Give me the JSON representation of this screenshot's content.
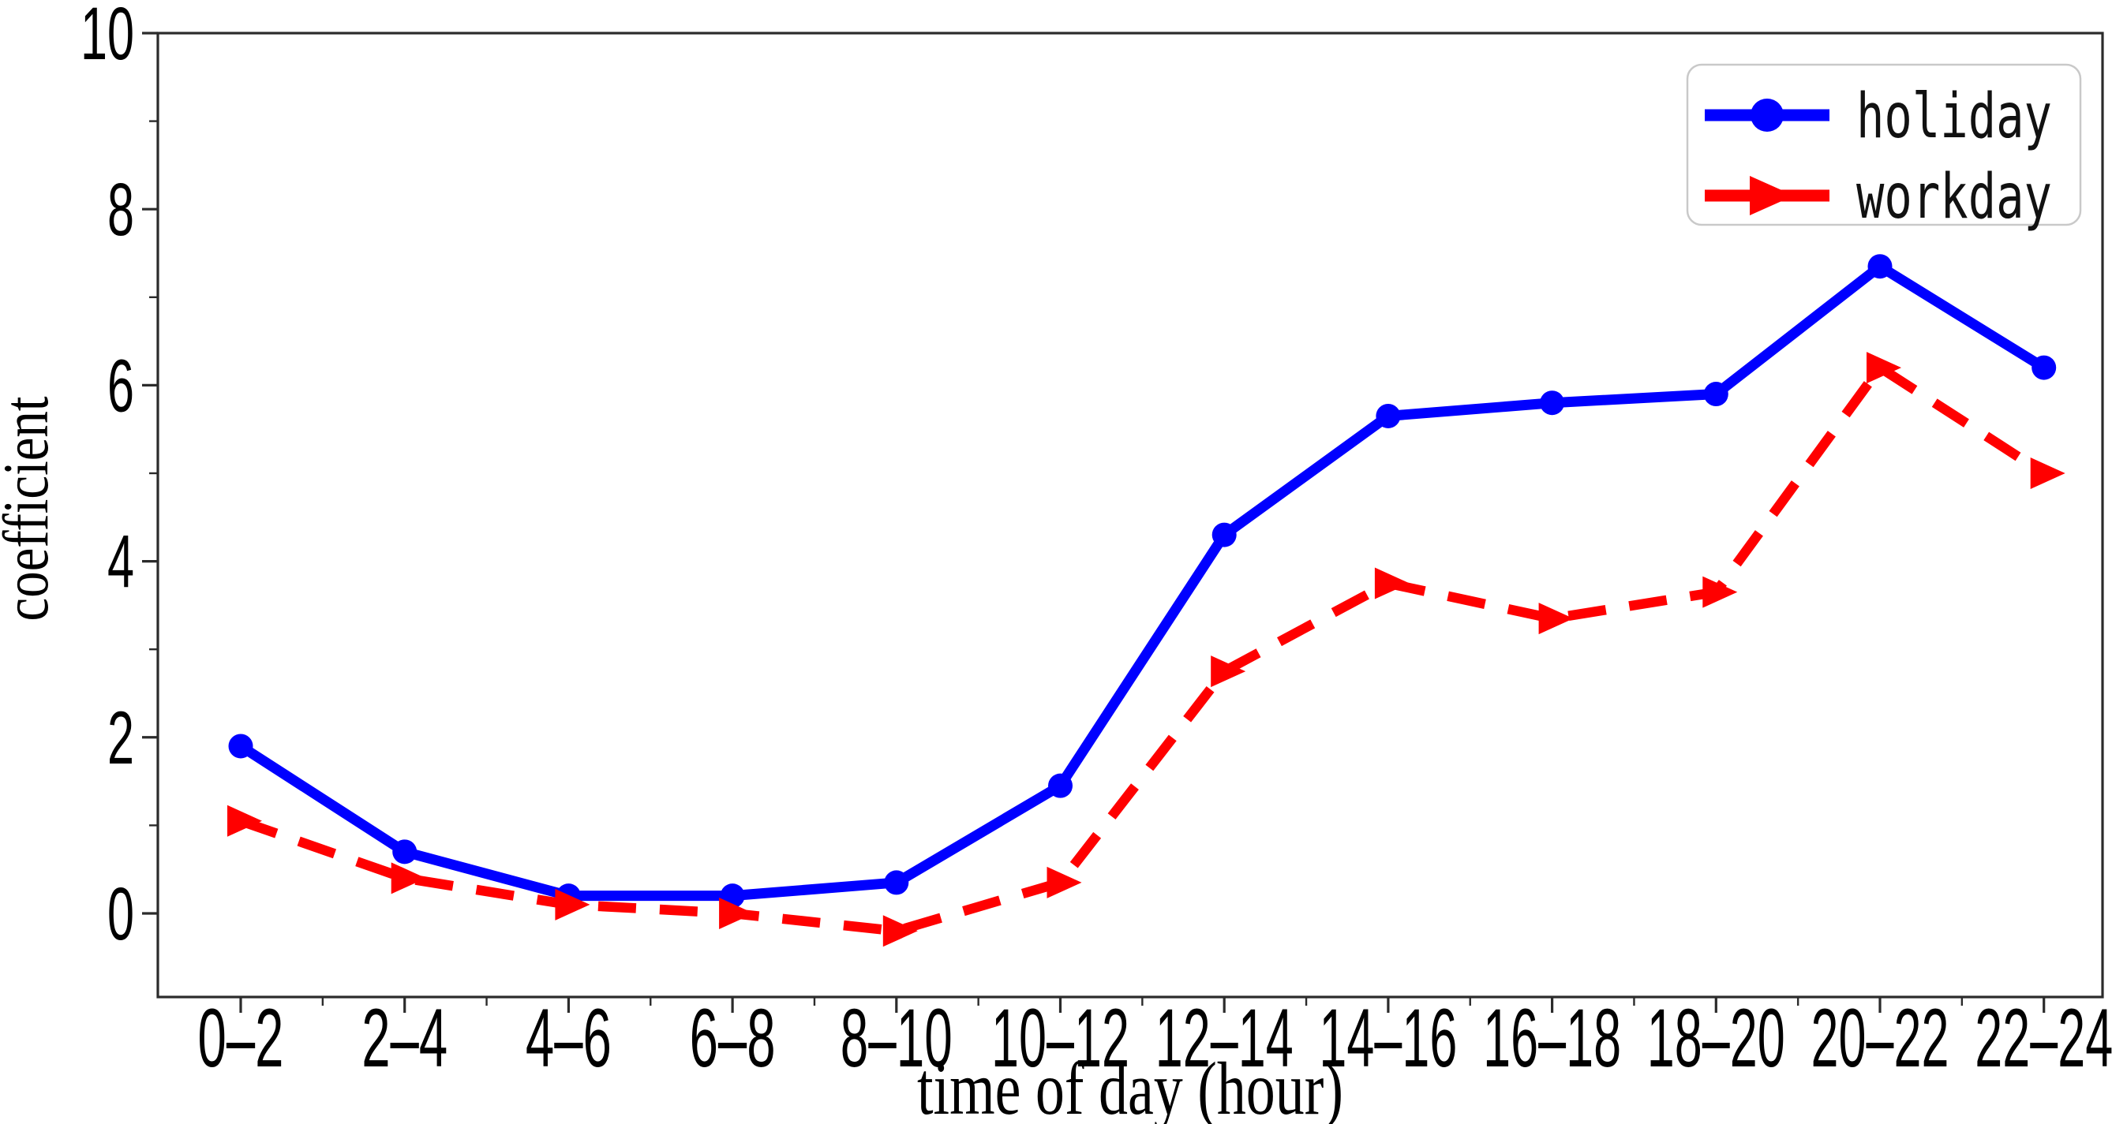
{
  "chart_data": {
    "type": "line",
    "title": "",
    "xlabel": "time of day (hour)",
    "ylabel": "coefficient",
    "categories": [
      "0–2",
      "2–4",
      "4–6",
      "6–8",
      "8–10",
      "10–12",
      "12–14",
      "14–16",
      "16–18",
      "18–20",
      "20–22",
      "22–24"
    ],
    "series": [
      {
        "name": "holiday",
        "color": "#0000ff",
        "line_style": "solid",
        "marker": "circle",
        "values": [
          1.9,
          0.7,
          0.2,
          0.2,
          0.35,
          1.45,
          4.3,
          5.65,
          5.8,
          5.9,
          7.35,
          6.2
        ]
      },
      {
        "name": "workday",
        "color": "#ff0000",
        "line_style": "dashed",
        "marker": "triangle-right",
        "values": [
          1.05,
          0.4,
          0.1,
          0.0,
          -0.2,
          0.35,
          2.75,
          3.75,
          3.35,
          3.65,
          6.2,
          5.0
        ]
      }
    ],
    "ylim": [
      -0.95,
      10.0
    ],
    "yticks": [
      0,
      2,
      4,
      6,
      8,
      10
    ],
    "ytick_labels": [
      "0",
      "2",
      "4",
      "6",
      "8",
      "10"
    ],
    "minor_yticks": [
      1,
      3,
      5,
      7,
      9
    ],
    "grid": false,
    "legend_position": "upper right",
    "axis_color": "#2b2b2b",
    "legend_border_color": "#c9c9c9",
    "legend_background": "#ffffff"
  }
}
